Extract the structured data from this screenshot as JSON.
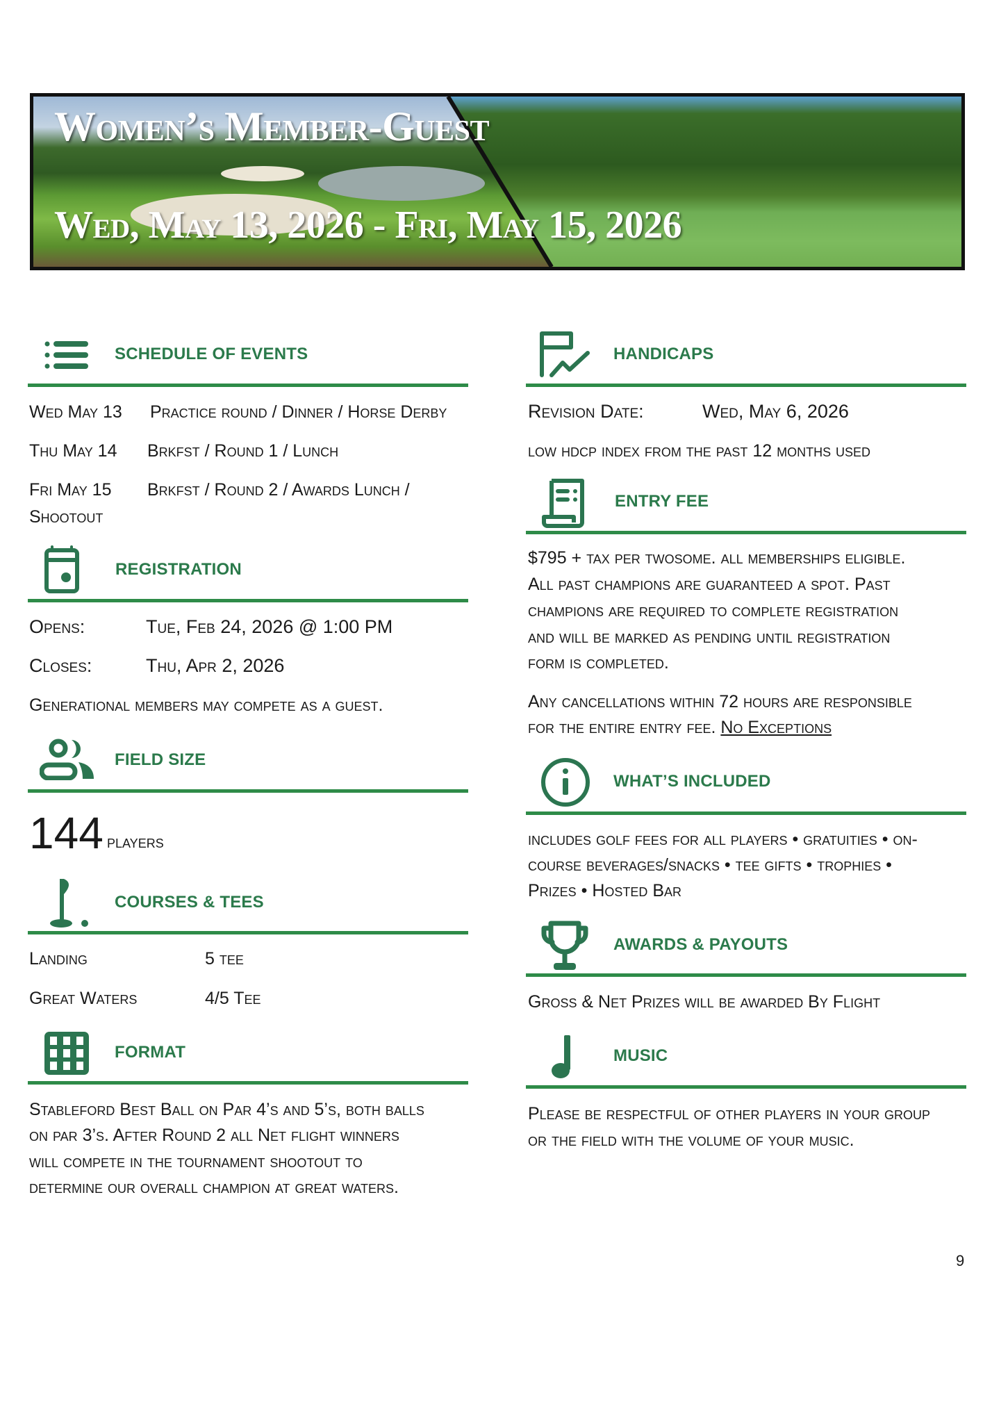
{
  "banner": {
    "title": "Women’s Member-Guest",
    "dates": "Wed, May 13, 2026 - Fri, May 15, 2026"
  },
  "colors": {
    "accent": "#2b7a4b",
    "rule": "#2e8b48"
  },
  "schedule": {
    "icon": "list-icon",
    "title": "SCHEDULE OF EVENTS",
    "rows": [
      {
        "day": "Wed May 13",
        "events": "Practice round / Dinner / Horse Derby"
      },
      {
        "day": "Thu May 14",
        "events": "Brkfst / Round 1 / Lunch"
      },
      {
        "day": "Fri May 15",
        "events": "Brkfst / Round 2 / Awards Lunch /",
        "events_cont": "Shootout"
      }
    ]
  },
  "registration": {
    "icon": "calendar-icon",
    "title": "REGISTRATION",
    "opens_label": "Opens:",
    "opens_value": "Tue, Feb 24, 2026 @ 1:00 PM",
    "closes_label": "Closes:",
    "closes_value": "Thu, Apr 2, 2026",
    "note": "Generational members may compete as a guest."
  },
  "field_size": {
    "icon": "people-icon",
    "title": "FIELD SIZE",
    "count": "144",
    "unit": "players"
  },
  "courses": {
    "icon": "golf-flag-icon",
    "title": "COURSES & TEES",
    "rows": [
      {
        "course": "Landing",
        "tee": "5 tee"
      },
      {
        "course": "Great Waters",
        "tee": "4/5 Tee"
      }
    ]
  },
  "format": {
    "icon": "grid-icon",
    "title": "FORMAT",
    "lines": [
      "Stableford Best Ball on Par 4’s and 5’s, both balls",
      "on par 3’s. After Round 2 all Net flight winners",
      "will compete in the tournament shootout to",
      "determine our overall champion at great waters."
    ]
  },
  "handicaps": {
    "icon": "chart-document-icon",
    "title": "HANDICAPS",
    "revision_label": "Revision Date:",
    "revision_value": "Wed, May 6, 2026",
    "note": "low hdcp index from the past 12 months used"
  },
  "entry_fee": {
    "icon": "receipt-icon",
    "title": "ENTRY FEE",
    "lines": [
      "$795 + tax per twosome. all memberships eligible.",
      "All past champions are guaranteed a spot. Past",
      "champions are required to complete registration",
      "and will be marked as pending until registration",
      "form is completed."
    ],
    "cancel_lines": [
      "Any cancellations within 72 hours are responsible",
      "for the entire entry fee."
    ],
    "no_exceptions": "No Exceptions"
  },
  "included": {
    "icon": "info-icon",
    "title": "WHAT’S INCLUDED",
    "lines": [
      "includes golf fees for all players • gratuities • on-",
      "course beverages/snacks • tee gifts • trophies •",
      "Prizes • Hosted Bar"
    ]
  },
  "awards": {
    "icon": "trophy-icon",
    "title": "AWARDS & PAYOUTS",
    "text": "Gross & Net Prizes will be awarded By Flight"
  },
  "music": {
    "icon": "music-note-icon",
    "title": "MUSIC",
    "lines": [
      "Please be respectful of other players in your group",
      "or the field with the volume of your music."
    ]
  },
  "page_number": "9"
}
